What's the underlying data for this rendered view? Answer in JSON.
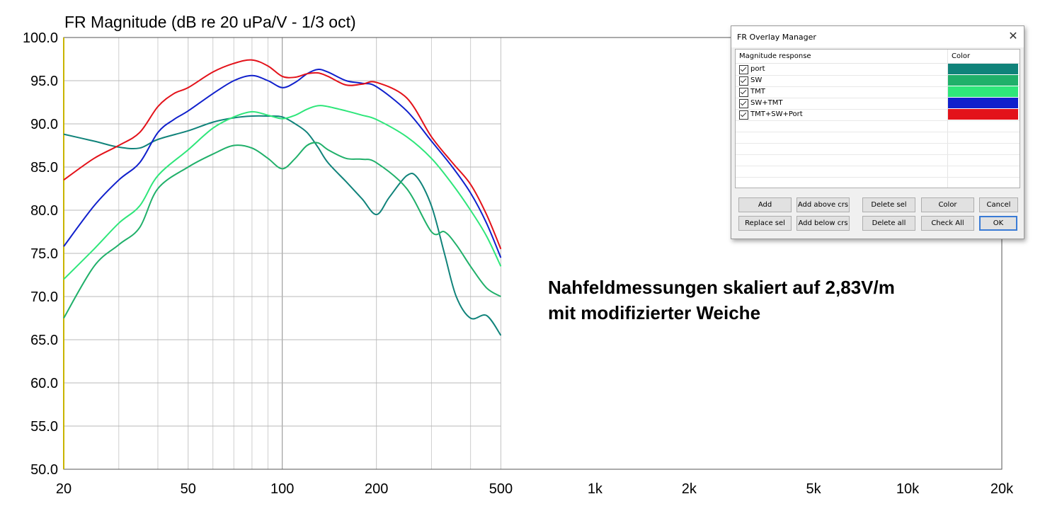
{
  "chart_data": {
    "type": "line",
    "title": "FR Magnitude (dB re 20 uPa/V - 1/3 oct)",
    "xscale": "log",
    "xlim": [
      20,
      20000
    ],
    "ylim": [
      50,
      100
    ],
    "xticks": [
      20,
      50,
      100,
      200,
      500,
      1000,
      2000,
      5000,
      10000,
      20000
    ],
    "xtick_labels": [
      "20",
      "50",
      "100",
      "200",
      "500",
      "1k",
      "2k",
      "5k",
      "10k",
      "20k"
    ],
    "yticks": [
      50,
      55,
      60,
      65,
      70,
      75,
      80,
      85,
      90,
      95,
      100
    ],
    "ytick_labels": [
      "50.0",
      "55.0",
      "60.0",
      "65.0",
      "70.0",
      "75.0",
      "80.0",
      "85.0",
      "90.0",
      "95.0",
      "100.0"
    ],
    "grid": true,
    "series": [
      {
        "name": "port",
        "color": "#10837a",
        "x": [
          20,
          25,
          30,
          35,
          40,
          50,
          60,
          70,
          80,
          90,
          100,
          110,
          120,
          130,
          140,
          160,
          180,
          200,
          220,
          250,
          270,
          300,
          330,
          360,
          400,
          450,
          500
        ],
        "y": [
          88.8,
          88.0,
          87.3,
          87.2,
          88.2,
          89.2,
          90.2,
          90.7,
          90.9,
          90.9,
          90.8,
          90.0,
          89.0,
          87.3,
          85.5,
          83.3,
          81.3,
          79.5,
          81.5,
          84.0,
          83.8,
          80.5,
          75.0,
          70.0,
          67.5,
          67.8,
          65.5
        ]
      },
      {
        "name": "SW",
        "color": "#20b06a",
        "x": [
          20,
          25,
          30,
          35,
          40,
          50,
          60,
          70,
          80,
          90,
          100,
          110,
          120,
          130,
          140,
          160,
          180,
          200,
          250,
          300,
          330,
          360,
          400,
          450,
          500
        ],
        "y": [
          67.5,
          73.5,
          76.0,
          78.0,
          82.5,
          85.0,
          86.5,
          87.5,
          87.2,
          86.0,
          84.8,
          86.0,
          87.5,
          87.8,
          87.0,
          86.0,
          85.9,
          85.5,
          82.5,
          77.5,
          77.5,
          76.0,
          73.5,
          71.0,
          70.0
        ]
      },
      {
        "name": "TMT",
        "color": "#2ee67a",
        "x": [
          20,
          25,
          30,
          35,
          40,
          50,
          60,
          70,
          80,
          90,
          100,
          110,
          120,
          130,
          140,
          160,
          180,
          200,
          250,
          300,
          350,
          400,
          450,
          500
        ],
        "y": [
          72.0,
          75.5,
          78.5,
          80.5,
          84.0,
          87.0,
          89.5,
          90.8,
          91.4,
          91.0,
          90.6,
          91.0,
          91.7,
          92.1,
          92.0,
          91.5,
          91.0,
          90.5,
          88.5,
          86.0,
          83.0,
          80.0,
          77.0,
          73.5
        ]
      },
      {
        "name": "SW+TMT",
        "color": "#1020cc",
        "x": [
          20,
          25,
          30,
          35,
          40,
          45,
          50,
          60,
          70,
          80,
          90,
          100,
          110,
          120,
          130,
          140,
          160,
          180,
          200,
          250,
          300,
          350,
          400,
          450,
          500
        ],
        "y": [
          75.8,
          80.5,
          83.5,
          85.5,
          89.0,
          90.5,
          91.5,
          93.5,
          95.0,
          95.6,
          95.0,
          94.2,
          94.8,
          95.8,
          96.3,
          96.0,
          95.0,
          94.7,
          94.3,
          91.5,
          88.0,
          85.0,
          82.0,
          78.5,
          74.5
        ]
      },
      {
        "name": "TMT+SW+Port",
        "color": "#e3121a",
        "x": [
          20,
          25,
          30,
          35,
          40,
          45,
          50,
          60,
          70,
          80,
          90,
          100,
          110,
          120,
          130,
          140,
          160,
          180,
          200,
          250,
          300,
          350,
          400,
          450,
          500
        ],
        "y": [
          83.5,
          86.0,
          87.5,
          89.0,
          92.0,
          93.5,
          94.2,
          96.0,
          97.0,
          97.4,
          96.7,
          95.5,
          95.4,
          95.8,
          95.9,
          95.5,
          94.5,
          94.6,
          94.8,
          93.0,
          88.5,
          85.5,
          83.0,
          79.5,
          75.5
        ]
      }
    ]
  },
  "annotation": {
    "line1": "Nahfeldmessungen skaliert auf 2,83V/m",
    "line2": "mit modifizierter Weiche"
  },
  "dialog": {
    "title": "FR Overlay Manager",
    "close_icon": "close-icon",
    "list_header_name": "Magnitude response",
    "list_header_color": "Color",
    "rows": [
      {
        "label": "port",
        "checked": true,
        "color": "#10837a"
      },
      {
        "label": "SW",
        "checked": true,
        "color": "#20b06a"
      },
      {
        "label": "TMT",
        "checked": true,
        "color": "#2ee67a"
      },
      {
        "label": "SW+TMT",
        "checked": true,
        "color": "#1020cc"
      },
      {
        "label": "TMT+SW+Port",
        "checked": true,
        "color": "#e3121a"
      }
    ],
    "buttons": {
      "add": "Add",
      "add_above": "Add above crs",
      "delete_sel": "Delete sel",
      "color": "Color",
      "cancel": "Cancel",
      "replace_sel": "Replace sel",
      "add_below": "Add below crs",
      "delete_all": "Delete all",
      "check_all": "Check All",
      "ok": "OK"
    }
  }
}
